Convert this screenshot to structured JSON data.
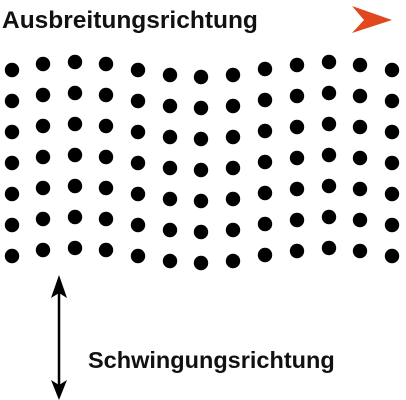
{
  "propagation_label": "Ausbreitungsrichtung",
  "oscillation_label": "Schwingungsrichtung",
  "colors": {
    "propagation_arrow": "#e2481f",
    "particles": "#000000",
    "text": "#111111"
  },
  "icons": {
    "propagation": "arrow-right-icon",
    "oscillation": "double-arrow-vertical-icon"
  },
  "lattice": {
    "columns": 13,
    "rows": 7,
    "description_of_motion": "transverse"
  }
}
